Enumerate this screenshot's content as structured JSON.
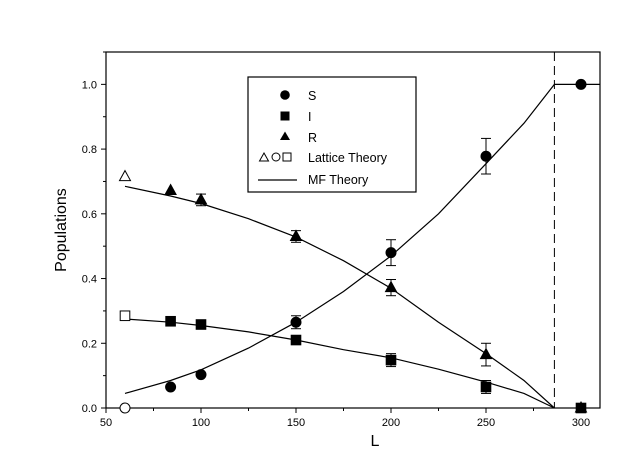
{
  "chart_data": {
    "type": "scatter",
    "xlabel": "L",
    "ylabel": "Populations",
    "xlim": [
      50,
      310
    ],
    "ylim": [
      0.0,
      1.1
    ],
    "x_ticks": [
      50,
      100,
      150,
      200,
      250,
      300
    ],
    "y_ticks": [
      0.0,
      0.2,
      0.4,
      0.6,
      0.8,
      1.0
    ],
    "x_tick_labels": [
      "50",
      "100",
      "150",
      "200",
      "250",
      "300"
    ],
    "y_tick_labels": [
      "0.0",
      "0.2",
      "0.4",
      "0.6",
      "0.8",
      "1.0"
    ],
    "critical_line_x": 286,
    "grid": false,
    "legend_position": "top-center",
    "legend": [
      {
        "label": "S",
        "marker": "circle-filled"
      },
      {
        "label": "I",
        "marker": "square-filled"
      },
      {
        "label": "R",
        "marker": "triangle-filled"
      },
      {
        "label": "Lattice Theory",
        "marker": "open-triangle-circle-square"
      },
      {
        "label": "MF Theory",
        "marker": "line"
      }
    ],
    "series": [
      {
        "name": "S",
        "marker": "circle",
        "x": [
          84,
          100,
          150,
          200,
          250,
          300
        ],
        "y": [
          0.065,
          0.103,
          0.265,
          0.48,
          0.778,
          1.0
        ],
        "err": [
          0.0,
          0.0,
          0.02,
          0.04,
          0.055,
          0.0
        ]
      },
      {
        "name": "I",
        "marker": "square",
        "x": [
          84,
          100,
          150,
          200,
          250,
          300
        ],
        "y": [
          0.268,
          0.258,
          0.21,
          0.148,
          0.065,
          0.0
        ],
        "err": [
          0.0,
          0.0,
          0.0,
          0.02,
          0.02,
          0.0
        ]
      },
      {
        "name": "R",
        "marker": "triangle",
        "x": [
          84,
          100,
          150,
          200,
          250,
          300
        ],
        "y": [
          0.672,
          0.643,
          0.53,
          0.372,
          0.165,
          0.0
        ],
        "err": [
          0.0,
          0.018,
          0.018,
          0.025,
          0.035,
          0.0
        ]
      },
      {
        "name": "Lattice Theory",
        "points": [
          {
            "marker": "triangle",
            "x": 60,
            "y": 0.715
          },
          {
            "marker": "square",
            "x": 60,
            "y": 0.285
          },
          {
            "marker": "circle",
            "x": 60,
            "y": 0.0
          }
        ]
      },
      {
        "name": "MF Theory",
        "curves": [
          {
            "x": [
              60,
              84,
              100,
              125,
              150,
              175,
              200,
              225,
              250,
              270,
              286,
              310
            ],
            "y": [
              0.045,
              0.085,
              0.118,
              0.185,
              0.265,
              0.36,
              0.47,
              0.6,
              0.755,
              0.88,
              1.0,
              1.0
            ]
          },
          {
            "x": [
              60,
              84,
              100,
              125,
              150,
              175,
              200,
              225,
              250,
              270,
              286
            ],
            "y": [
              0.685,
              0.655,
              0.632,
              0.585,
              0.528,
              0.455,
              0.37,
              0.265,
              0.168,
              0.085,
              0.0
            ]
          },
          {
            "x": [
              60,
              84,
              100,
              125,
              150,
              175,
              200,
              225,
              250,
              270,
              286
            ],
            "y": [
              0.275,
              0.265,
              0.255,
              0.235,
              0.21,
              0.18,
              0.155,
              0.12,
              0.08,
              0.045,
              0.0
            ]
          }
        ]
      }
    ]
  }
}
